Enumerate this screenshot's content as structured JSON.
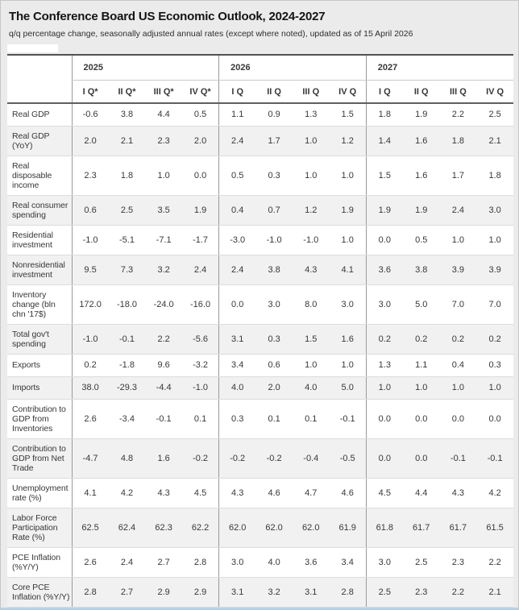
{
  "page": {
    "title": "The Conference Board US Economic Outlook, 2024-2027",
    "subtitle": "q/q percentage change, seasonally adjusted annual rates (except where noted), updated as of 15 April 2026"
  },
  "chart_data": {
    "type": "table",
    "title": "The Conference Board US Economic Outlook, 2024-2027",
    "subtitle": "q/q percentage change, seasonally adjusted annual rates (except where noted), updated as of 15 April 2026",
    "year_groups": [
      {
        "label": "2025",
        "quarters": [
          "I Q*",
          "II Q*",
          "III Q*",
          "IV Q*"
        ]
      },
      {
        "label": "2026",
        "quarters": [
          "I Q",
          "II Q",
          "III Q",
          "IV Q"
        ]
      },
      {
        "label": "2027",
        "quarters": [
          "I Q",
          "II Q",
          "III Q",
          "IV Q"
        ]
      }
    ],
    "rows": [
      {
        "label": "Real GDP",
        "values": [
          "-0.6",
          "3.8",
          "4.4",
          "0.5",
          "1.1",
          "0.9",
          "1.3",
          "1.5",
          "1.8",
          "1.9",
          "2.2",
          "2.5"
        ]
      },
      {
        "label": "Real GDP (YoY)",
        "values": [
          "2.0",
          "2.1",
          "2.3",
          "2.0",
          "2.4",
          "1.7",
          "1.0",
          "1.2",
          "1.4",
          "1.6",
          "1.8",
          "2.1"
        ]
      },
      {
        "label": "Real disposable income",
        "values": [
          "2.3",
          "1.8",
          "1.0",
          "0.0",
          "0.5",
          "0.3",
          "1.0",
          "1.0",
          "1.5",
          "1.6",
          "1.7",
          "1.8"
        ]
      },
      {
        "label": "Real consumer spending",
        "values": [
          "0.6",
          "2.5",
          "3.5",
          "1.9",
          "0.4",
          "0.7",
          "1.2",
          "1.9",
          "1.9",
          "1.9",
          "2.4",
          "3.0"
        ]
      },
      {
        "label": "Residential investment",
        "values": [
          "-1.0",
          "-5.1",
          "-7.1",
          "-1.7",
          "-3.0",
          "-1.0",
          "-1.0",
          "1.0",
          "0.0",
          "0.5",
          "1.0",
          "1.0"
        ]
      },
      {
        "label": "Nonresidential investment",
        "values": [
          "9.5",
          "7.3",
          "3.2",
          "2.4",
          "2.4",
          "3.8",
          "4.3",
          "4.1",
          "3.6",
          "3.8",
          "3.9",
          "3.9"
        ]
      },
      {
        "label": "Inventory change (bln chn '17$)",
        "values": [
          "172.0",
          "-18.0",
          "-24.0",
          "-16.0",
          "0.0",
          "3.0",
          "8.0",
          "3.0",
          "3.0",
          "5.0",
          "7.0",
          "7.0"
        ]
      },
      {
        "label": "Total gov't spending",
        "values": [
          "-1.0",
          "-0.1",
          "2.2",
          "-5.6",
          "3.1",
          "0.3",
          "1.5",
          "1.6",
          "0.2",
          "0.2",
          "0.2",
          "0.2"
        ]
      },
      {
        "label": "Exports",
        "values": [
          "0.2",
          "-1.8",
          "9.6",
          "-3.2",
          "3.4",
          "0.6",
          "1.0",
          "1.0",
          "1.3",
          "1.1",
          "0.4",
          "0.3"
        ]
      },
      {
        "label": "Imports",
        "values": [
          "38.0",
          "-29.3",
          "-4.4",
          "-1.0",
          "4.0",
          "2.0",
          "4.0",
          "5.0",
          "1.0",
          "1.0",
          "1.0",
          "1.0"
        ]
      },
      {
        "label": "Contribution to GDP from Inventories",
        "values": [
          "2.6",
          "-3.4",
          "-0.1",
          "0.1",
          "0.3",
          "0.1",
          "0.1",
          "-0.1",
          "0.0",
          "0.0",
          "0.0",
          "0.0"
        ]
      },
      {
        "label": "Contribution to GDP from Net Trade",
        "values": [
          "-4.7",
          "4.8",
          "1.6",
          "-0.2",
          "-0.2",
          "-0.2",
          "-0.4",
          "-0.5",
          "0.0",
          "0.0",
          "-0.1",
          "-0.1"
        ]
      },
      {
        "label": "Unemployment rate (%)",
        "values": [
          "4.1",
          "4.2",
          "4.3",
          "4.5",
          "4.3",
          "4.6",
          "4.7",
          "4.6",
          "4.5",
          "4.4",
          "4.3",
          "4.2"
        ]
      },
      {
        "label": "Labor Force Participation Rate (%)",
        "values": [
          "62.5",
          "62.4",
          "62.3",
          "62.2",
          "62.0",
          "62.0",
          "62.0",
          "61.9",
          "61.8",
          "61.7",
          "61.7",
          "61.5"
        ]
      },
      {
        "label": "PCE Inflation (%Y/Y)",
        "values": [
          "2.6",
          "2.4",
          "2.7",
          "2.8",
          "3.0",
          "4.0",
          "3.6",
          "3.4",
          "3.0",
          "2.5",
          "2.3",
          "2.2"
        ]
      },
      {
        "label": "Core PCE Inflation (%Y/Y)",
        "values": [
          "2.8",
          "2.7",
          "2.9",
          "2.9",
          "3.1",
          "3.2",
          "3.1",
          "2.8",
          "2.5",
          "2.3",
          "2.2",
          "2.1"
        ]
      }
    ]
  },
  "colors": {
    "page_background": "#ebebeb",
    "table_background": "#ffffff",
    "stripe": "#f1f1f1",
    "group_divider": "#9a9a9a",
    "header_rule": "#5f5f5f",
    "row_rule": "#dcdcdc",
    "bottom_edge": "#b5d4eb",
    "text": "#383838"
  }
}
